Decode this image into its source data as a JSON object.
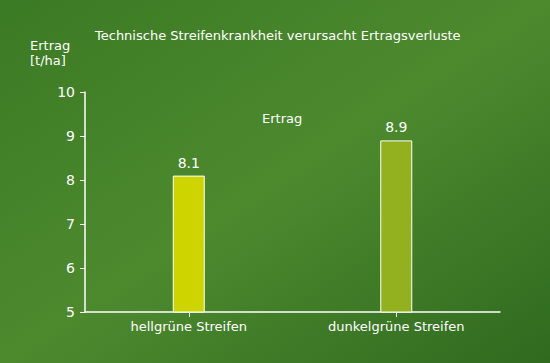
{
  "chart_data": {
    "type": "bar",
    "title": "Technische Streifenkrankheit verursacht Ertragsverluste",
    "y_label": "Ertrag\n[t/ha]",
    "annotations": [
      "Ertrag"
    ],
    "categories": [
      "hellgrüne Streifen",
      "dunkelgrüne Streifen"
    ],
    "values": [
      8.1,
      8.9
    ],
    "colors": [
      "#cdd400",
      "#93b01e"
    ],
    "ylim": [
      5,
      10
    ],
    "yticks": [
      5,
      6,
      7,
      8,
      9,
      10
    ],
    "grid": false,
    "data_labels": true
  }
}
